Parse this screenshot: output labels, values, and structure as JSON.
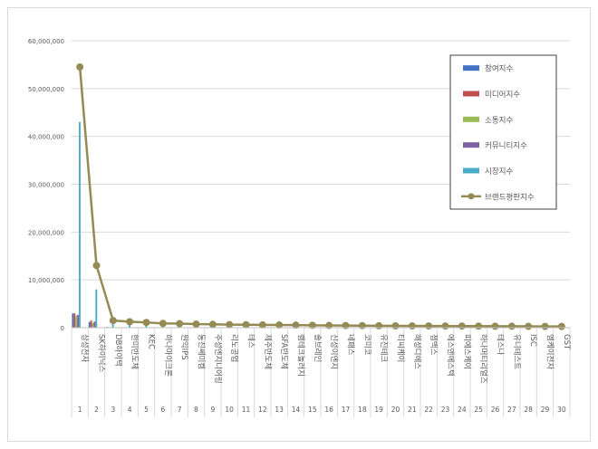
{
  "chart_data": {
    "type": "bar",
    "title": "",
    "xlabel": "",
    "ylabel": "",
    "ylim": [
      0,
      60000000
    ],
    "yticks": [
      0,
      10000000,
      20000000,
      30000000,
      40000000,
      50000000,
      60000000
    ],
    "ytick_labels": [
      "0",
      "10,000,000",
      "20,000,000",
      "30,000,000",
      "40,000,000",
      "50,000,000",
      "60,000,000"
    ],
    "grid": true,
    "legend_position": "top-right",
    "ranks": [
      "1",
      "2",
      "3",
      "4",
      "5",
      "6",
      "7",
      "8",
      "9",
      "10",
      "11",
      "12",
      "13",
      "14",
      "15",
      "16",
      "17",
      "18",
      "19",
      "20",
      "21",
      "22",
      "23",
      "24",
      "25",
      "26",
      "27",
      "28",
      "29",
      "30"
    ],
    "categories": [
      "삼성전자",
      "SK하이닉스",
      "DB하이텍",
      "한미반도체",
      "KEC",
      "하나마이크론",
      "원익IPS",
      "동진쎄미켐",
      "주성엔지니어링",
      "리노공업",
      "테스",
      "제주반도체",
      "SFA반도체",
      "램테크놀러지",
      "솔브레인",
      "신성이엔지",
      "네패스",
      "코미코",
      "유진테크",
      "티씨케이",
      "해성디에스",
      "젬백스",
      "에스앤에스텍",
      "피에스케이",
      "하나머티리얼즈",
      "테스나",
      "유니테스트",
      "ISC",
      "엠케이전자",
      "GST"
    ],
    "series": [
      {
        "name": "참여지수",
        "color": "#4472c4",
        "kind": "bar",
        "values": [
          3000000,
          1200000,
          120000,
          60000,
          40000,
          30000,
          30000,
          25000,
          25000,
          20000,
          20000,
          15000,
          15000,
          15000,
          15000,
          12000,
          12000,
          10000,
          10000,
          10000,
          10000,
          10000,
          8000,
          8000,
          8000,
          8000,
          8000,
          6000,
          6000,
          6000
        ]
      },
      {
        "name": "미디어지수",
        "color": "#c0504d",
        "kind": "bar",
        "values": [
          3000000,
          1500000,
          150000,
          80000,
          60000,
          50000,
          40000,
          40000,
          35000,
          30000,
          30000,
          25000,
          25000,
          20000,
          20000,
          20000,
          15000,
          15000,
          15000,
          15000,
          12000,
          12000,
          12000,
          10000,
          10000,
          10000,
          10000,
          8000,
          8000,
          8000
        ]
      },
      {
        "name": "소통지수",
        "color": "#9bbb59",
        "kind": "bar",
        "values": [
          2500000,
          1000000,
          100000,
          50000,
          40000,
          30000,
          30000,
          25000,
          25000,
          20000,
          20000,
          15000,
          15000,
          15000,
          12000,
          12000,
          10000,
          10000,
          10000,
          10000,
          8000,
          8000,
          8000,
          8000,
          6000,
          6000,
          6000,
          6000,
          5000,
          5000
        ]
      },
      {
        "name": "커뮤니티지수",
        "color": "#8064a2",
        "kind": "bar",
        "values": [
          2700000,
          1300000,
          100000,
          60000,
          40000,
          30000,
          30000,
          25000,
          25000,
          20000,
          20000,
          15000,
          15000,
          15000,
          12000,
          12000,
          10000,
          10000,
          10000,
          10000,
          8000,
          8000,
          8000,
          8000,
          6000,
          6000,
          6000,
          6000,
          5000,
          5000
        ]
      },
      {
        "name": "시장지수",
        "color": "#4bacc6",
        "kind": "bar",
        "values": [
          43000000,
          8000000,
          1000000,
          1000000,
          900000,
          700000,
          650000,
          600000,
          550000,
          500000,
          480000,
          450000,
          430000,
          400000,
          380000,
          360000,
          340000,
          320000,
          300000,
          290000,
          280000,
          270000,
          260000,
          250000,
          240000,
          230000,
          220000,
          210000,
          200000,
          190000
        ]
      },
      {
        "name": "브랜드평판지수",
        "color": "#948a54",
        "kind": "line",
        "values": [
          54500000,
          13000000,
          1500000,
          1250000,
          1100000,
          900000,
          850000,
          750000,
          700000,
          650000,
          620000,
          580000,
          560000,
          540000,
          500000,
          470000,
          450000,
          430000,
          400000,
          380000,
          370000,
          360000,
          350000,
          340000,
          320000,
          310000,
          300000,
          280000,
          270000,
          260000
        ]
      }
    ]
  }
}
